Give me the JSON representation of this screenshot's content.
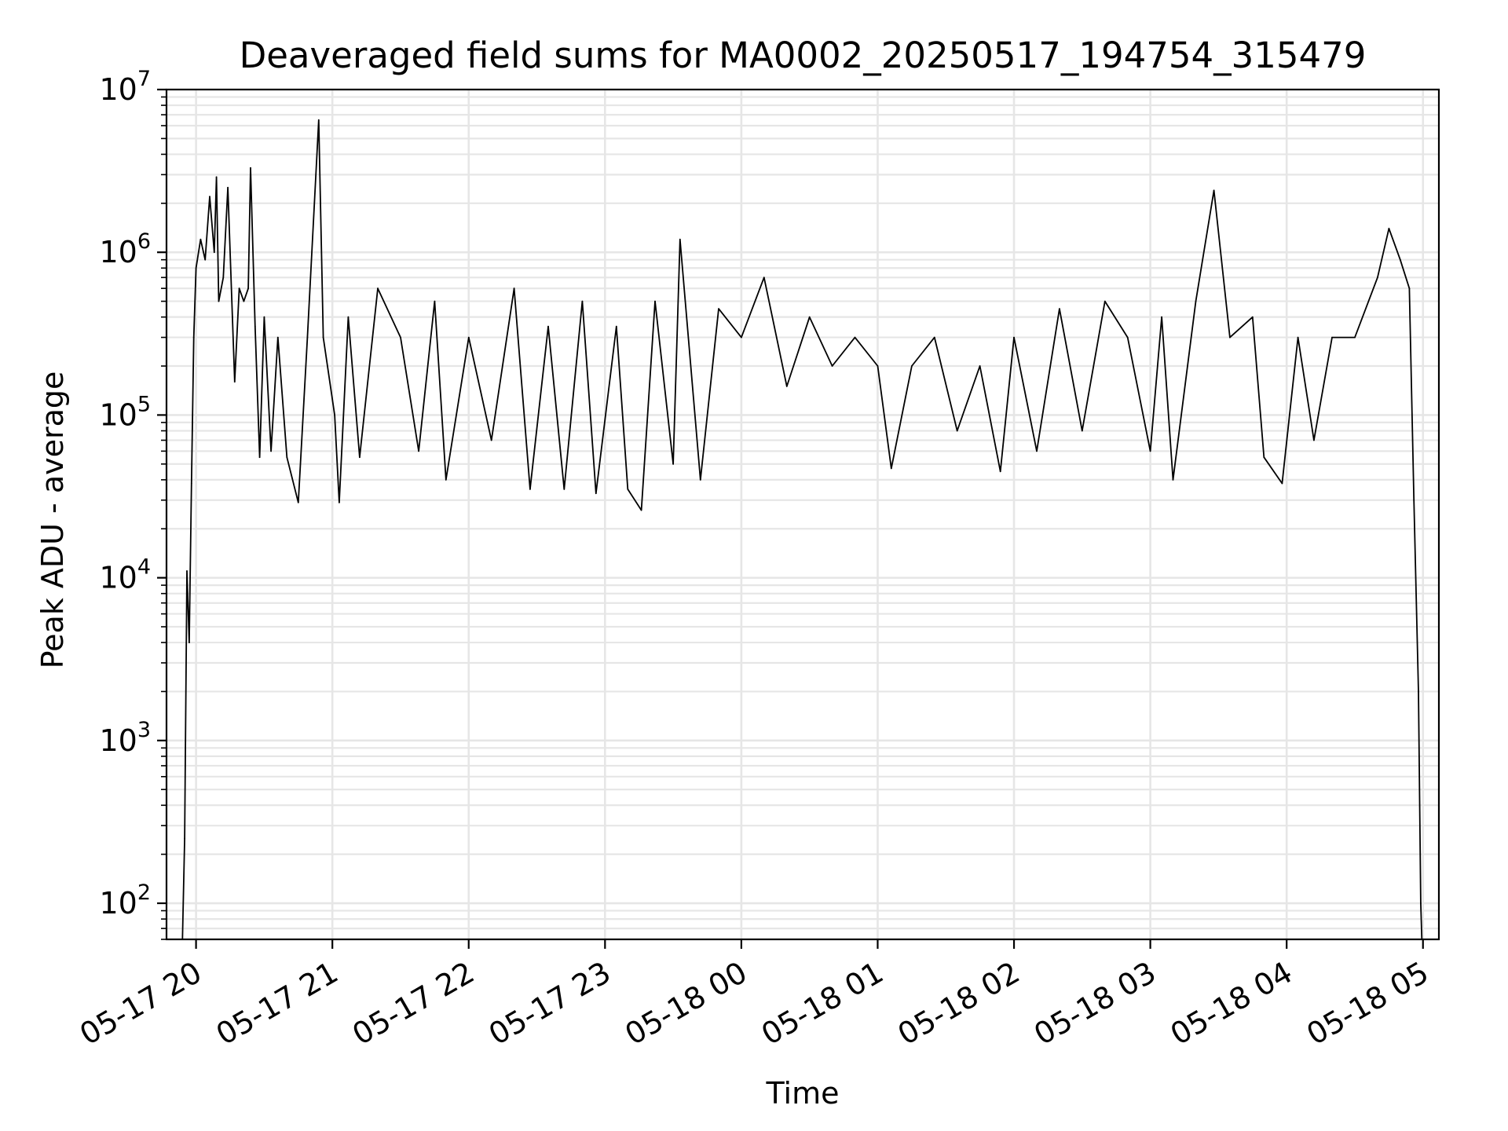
{
  "chart_data": {
    "type": "line",
    "title": "Deaveraged field sums for MA0002_20250517_194754_315479",
    "xlabel": "Time",
    "ylabel": "Peak ADU - average",
    "yscale": "log",
    "ylim": [
      60,
      10000000
    ],
    "xlim": [
      "2025-05-17T19:47:00",
      "2025-05-18T05:07:00"
    ],
    "x_ticks": [
      {
        "t": "2025-05-17T20:00",
        "label": "05-17 20"
      },
      {
        "t": "2025-05-17T21:00",
        "label": "05-17 21"
      },
      {
        "t": "2025-05-17T22:00",
        "label": "05-17 22"
      },
      {
        "t": "2025-05-17T23:00",
        "label": "05-17 23"
      },
      {
        "t": "2025-05-18T00:00",
        "label": "05-18 00"
      },
      {
        "t": "2025-05-18T01:00",
        "label": "05-18 01"
      },
      {
        "t": "2025-05-18T02:00",
        "label": "05-18 02"
      },
      {
        "t": "2025-05-18T03:00",
        "label": "05-18 03"
      },
      {
        "t": "2025-05-18T04:00",
        "label": "05-18 04"
      },
      {
        "t": "2025-05-18T05:00",
        "label": "05-18 05"
      }
    ],
    "y_ticks": [
      {
        "value": 100,
        "base": "10",
        "exp": "2"
      },
      {
        "value": 1000,
        "base": "10",
        "exp": "3"
      },
      {
        "value": 10000,
        "base": "10",
        "exp": "4"
      },
      {
        "value": 100000,
        "base": "10",
        "exp": "5"
      },
      {
        "value": 1000000,
        "base": "10",
        "exp": "6"
      },
      {
        "value": 10000000,
        "base": "10",
        "exp": "7"
      }
    ],
    "grid": true,
    "series_color": "#000000",
    "series": [
      {
        "points": [
          [
            "2025-05-17T19:54",
            60
          ],
          [
            "2025-05-17T19:55",
            250
          ],
          [
            "2025-05-17T19:56",
            11000
          ],
          [
            "2025-05-17T19:57",
            4000
          ],
          [
            "2025-05-17T19:58",
            38000
          ],
          [
            "2025-05-17T19:59",
            300000
          ],
          [
            "2025-05-17T20:00",
            800000
          ],
          [
            "2025-05-17T20:02",
            1200000
          ],
          [
            "2025-05-17T20:04",
            900000
          ],
          [
            "2025-05-17T20:06",
            2200000
          ],
          [
            "2025-05-17T20:08",
            1000000
          ],
          [
            "2025-05-17T20:09",
            2900000
          ],
          [
            "2025-05-17T20:10",
            500000
          ],
          [
            "2025-05-17T20:12",
            700000
          ],
          [
            "2025-05-17T20:14",
            2500000
          ],
          [
            "2025-05-17T20:16",
            400000
          ],
          [
            "2025-05-17T20:17",
            160000
          ],
          [
            "2025-05-17T20:19",
            600000
          ],
          [
            "2025-05-17T20:21",
            500000
          ],
          [
            "2025-05-17T20:23",
            600000
          ],
          [
            "2025-05-17T20:24",
            3300000
          ],
          [
            "2025-05-17T20:26",
            350000
          ],
          [
            "2025-05-17T20:28",
            55000
          ],
          [
            "2025-05-17T20:30",
            400000
          ],
          [
            "2025-05-17T20:33",
            60000
          ],
          [
            "2025-05-17T20:36",
            300000
          ],
          [
            "2025-05-17T20:40",
            55000
          ],
          [
            "2025-05-17T20:45",
            29000
          ],
          [
            "2025-05-17T20:49",
            300000
          ],
          [
            "2025-05-17T20:54",
            6500000
          ],
          [
            "2025-05-17T20:56",
            300000
          ],
          [
            "2025-05-17T21:01",
            100000
          ],
          [
            "2025-05-17T21:03",
            29000
          ],
          [
            "2025-05-17T21:07",
            400000
          ],
          [
            "2025-05-17T21:12",
            55000
          ],
          [
            "2025-05-17T21:20",
            600000
          ],
          [
            "2025-05-17T21:30",
            300000
          ],
          [
            "2025-05-17T21:38",
            60000
          ],
          [
            "2025-05-17T21:45",
            500000
          ],
          [
            "2025-05-17T21:50",
            40000
          ],
          [
            "2025-05-17T22:00",
            300000
          ],
          [
            "2025-05-17T22:10",
            70000
          ],
          [
            "2025-05-17T22:20",
            600000
          ],
          [
            "2025-05-17T22:27",
            35000
          ],
          [
            "2025-05-17T22:35",
            350000
          ],
          [
            "2025-05-17T22:42",
            35000
          ],
          [
            "2025-05-17T22:50",
            500000
          ],
          [
            "2025-05-17T22:56",
            33000
          ],
          [
            "2025-05-17T23:05",
            350000
          ],
          [
            "2025-05-17T23:10",
            35000
          ],
          [
            "2025-05-17T23:16",
            26000
          ],
          [
            "2025-05-17T23:22",
            500000
          ],
          [
            "2025-05-17T23:30",
            50000
          ],
          [
            "2025-05-17T23:33",
            1200000
          ],
          [
            "2025-05-17T23:42",
            40000
          ],
          [
            "2025-05-17T23:50",
            450000
          ],
          [
            "2025-05-18T00:00",
            300000
          ],
          [
            "2025-05-18T00:10",
            700000
          ],
          [
            "2025-05-18T00:20",
            150000
          ],
          [
            "2025-05-18T00:30",
            400000
          ],
          [
            "2025-05-18T00:40",
            200000
          ],
          [
            "2025-05-18T00:50",
            300000
          ],
          [
            "2025-05-18T01:00",
            200000
          ],
          [
            "2025-05-18T01:06",
            47000
          ],
          [
            "2025-05-18T01:15",
            200000
          ],
          [
            "2025-05-18T01:25",
            300000
          ],
          [
            "2025-05-18T01:35",
            80000
          ],
          [
            "2025-05-18T01:45",
            200000
          ],
          [
            "2025-05-18T01:54",
            45000
          ],
          [
            "2025-05-18T02:00",
            300000
          ],
          [
            "2025-05-18T02:10",
            60000
          ],
          [
            "2025-05-18T02:20",
            450000
          ],
          [
            "2025-05-18T02:30",
            80000
          ],
          [
            "2025-05-18T02:40",
            500000
          ],
          [
            "2025-05-18T02:50",
            300000
          ],
          [
            "2025-05-18T03:00",
            60000
          ],
          [
            "2025-05-18T03:05",
            400000
          ],
          [
            "2025-05-18T03:10",
            40000
          ],
          [
            "2025-05-18T03:20",
            500000
          ],
          [
            "2025-05-18T03:28",
            2400000
          ],
          [
            "2025-05-18T03:35",
            300000
          ],
          [
            "2025-05-18T03:45",
            400000
          ],
          [
            "2025-05-18T03:50",
            55000
          ],
          [
            "2025-05-18T03:58",
            38000
          ],
          [
            "2025-05-18T04:05",
            300000
          ],
          [
            "2025-05-18T04:12",
            70000
          ],
          [
            "2025-05-18T04:20",
            300000
          ],
          [
            "2025-05-18T04:30",
            300000
          ],
          [
            "2025-05-18T04:40",
            700000
          ],
          [
            "2025-05-18T04:45",
            1400000
          ],
          [
            "2025-05-18T04:50",
            900000
          ],
          [
            "2025-05-18T04:54",
            600000
          ],
          [
            "2025-05-18T04:56",
            30000
          ],
          [
            "2025-05-18T04:58",
            2000
          ],
          [
            "2025-05-18T04:59",
            100
          ],
          [
            "2025-05-18T04:59:30",
            60
          ]
        ]
      }
    ]
  }
}
